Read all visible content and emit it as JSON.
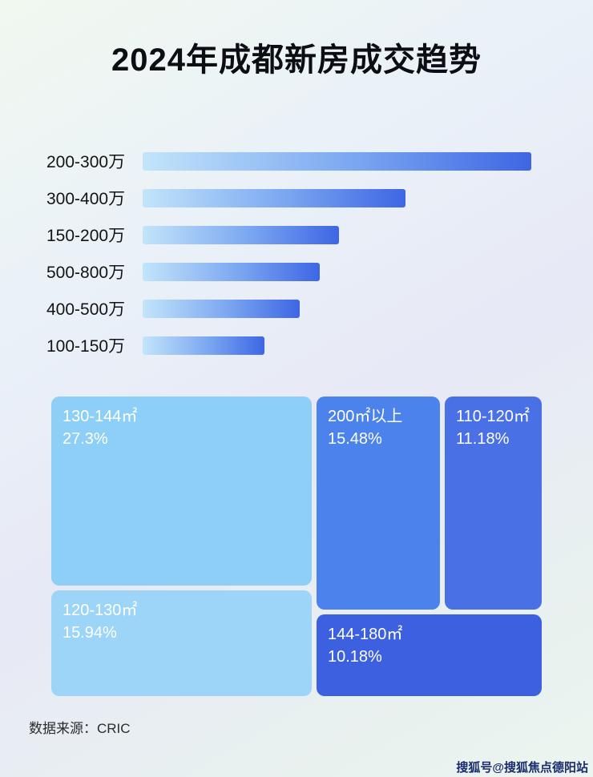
{
  "title": "2024年成都新房成交趋势",
  "source": "数据来源：CRIC",
  "watermark": "搜狐号@搜狐焦点德阳站",
  "colors": {
    "bar_gradient_start": "#c2e5fa",
    "bar_gradient_end": "#3e66e4",
    "treemap_light_blue": "#8dcff6",
    "treemap_light_blue_2": "#9cd5f8",
    "treemap_medium_blue": "#4c82ec",
    "treemap_blue": "#4a70e6",
    "treemap_dark_blue": "#3c60e0",
    "title_color": "#0d0d14"
  },
  "chart_data": [
    {
      "type": "bar",
      "orientation": "horizontal",
      "categories": [
        "200-300万",
        "300-400万",
        "150-200万",
        "500-800万",
        "400-500万",
        "100-150万"
      ],
      "values": [
        99,
        67,
        50,
        45,
        40,
        31
      ],
      "values_note": "relative bar length in % of track (no numeric axis shown in image)",
      "xlabel": "",
      "ylabel": "",
      "grid": false,
      "legend": false
    },
    {
      "type": "treemap",
      "items": [
        {
          "label": "130-144㎡",
          "pct": "27.3%",
          "value": 27.3
        },
        {
          "label": "200㎡以上",
          "pct": "15.48%",
          "value": 15.48
        },
        {
          "label": "110-120㎡",
          "pct": "11.18%",
          "value": 11.18
        },
        {
          "label": "120-130㎡",
          "pct": "15.94%",
          "value": 15.94
        },
        {
          "label": "144-180㎡",
          "pct": "10.18%",
          "value": 10.18
        }
      ]
    }
  ]
}
